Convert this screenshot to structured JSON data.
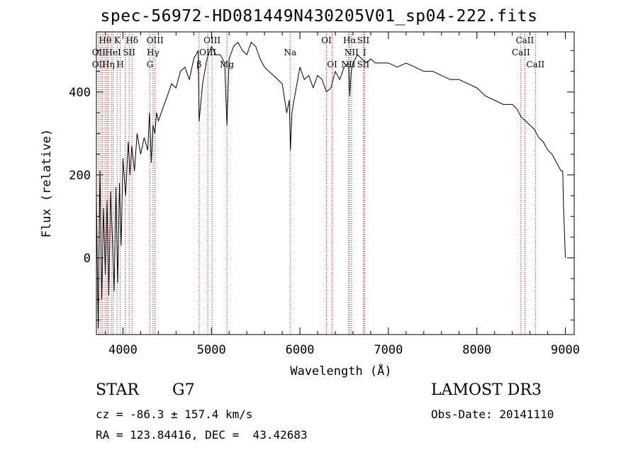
{
  "title": "spec-56972-HD081449N430205V01_sp04-222.fits",
  "info": {
    "object_class": "STAR",
    "subclass": "G7",
    "survey": "LAMOST DR3",
    "cz_line": "cz = -86.3 ± 157.4 km/s",
    "obs_date_line": "Obs-Date: 20141110",
    "radec_line": "RA = 123.84416, DEC =  43.42683"
  },
  "chart_data": {
    "type": "line",
    "title": "spec-56972-HD081449N430205V01_sp04-222.fits",
    "xlabel": "Wavelength (Å)",
    "ylabel": "Flux (relative)",
    "xlim": [
      3700,
      9100
    ],
    "ylim": [
      -185,
      545
    ],
    "xticks": [
      4000,
      5000,
      6000,
      7000,
      8000,
      9000
    ],
    "xtick_labels": [
      "4000",
      "5000",
      "6000",
      "7000",
      "8000",
      "9000"
    ],
    "yticks": [
      0,
      200,
      400
    ],
    "ytick_labels": [
      "0",
      "200",
      "400"
    ],
    "grid": false,
    "series": [
      {
        "name": "flux",
        "x": [
          3700,
          3720,
          3740,
          3760,
          3780,
          3800,
          3820,
          3840,
          3860,
          3880,
          3900,
          3920,
          3940,
          3960,
          3980,
          4000,
          4030,
          4060,
          4080,
          4100,
          4130,
          4160,
          4200,
          4240,
          4280,
          4300,
          4320,
          4340,
          4360,
          4380,
          4400,
          4450,
          4500,
          4550,
          4600,
          4650,
          4700,
          4750,
          4800,
          4850,
          4861,
          4900,
          4950,
          5000,
          5050,
          5100,
          5150,
          5175,
          5200,
          5250,
          5300,
          5350,
          5400,
          5450,
          5500,
          5550,
          5600,
          5650,
          5700,
          5750,
          5800,
          5850,
          5880,
          5893,
          5910,
          5950,
          6000,
          6050,
          6100,
          6150,
          6200,
          6250,
          6300,
          6350,
          6400,
          6450,
          6500,
          6550,
          6563,
          6580,
          6600,
          6650,
          6700,
          6750,
          6800,
          6850,
          6900,
          6950,
          7000,
          7100,
          7200,
          7300,
          7400,
          7500,
          7600,
          7700,
          7800,
          7900,
          8000,
          8100,
          8200,
          8300,
          8400,
          8450,
          8500,
          8550,
          8600,
          8650,
          8700,
          8750,
          8800,
          8850,
          8900,
          8950,
          8970,
          8980,
          8990,
          9000
        ],
        "values": [
          150,
          -170,
          210,
          -100,
          120,
          -40,
          140,
          -90,
          160,
          50,
          -80,
          170,
          -60,
          180,
          30,
          240,
          150,
          280,
          200,
          270,
          210,
          300,
          250,
          290,
          260,
          350,
          230,
          320,
          300,
          350,
          330,
          360,
          390,
          420,
          410,
          450,
          460,
          430,
          480,
          500,
          330,
          420,
          480,
          510,
          490,
          490,
          470,
          320,
          480,
          510,
          520,
          500,
          490,
          520,
          510,
          480,
          460,
          450,
          440,
          430,
          420,
          350,
          380,
          260,
          350,
          400,
          460,
          430,
          440,
          410,
          440,
          430,
          400,
          410,
          450,
          430,
          460,
          470,
          390,
          450,
          470,
          490,
          480,
          470,
          480,
          470,
          470,
          470,
          470,
          460,
          470,
          460,
          450,
          450,
          440,
          430,
          430,
          420,
          410,
          390,
          380,
          370,
          370,
          360,
          340,
          330,
          320,
          310,
          290,
          280,
          260,
          250,
          230,
          210,
          210,
          120,
          60,
          0
        ]
      }
    ],
    "lines": {
      "wavelengths": [
        3727,
        3750,
        3771,
        3798,
        3820,
        3835,
        3869,
        3889,
        3934,
        3969,
        4026,
        4070,
        4102,
        4305,
        4340,
        4363,
        4861,
        4959,
        5007,
        5175,
        5890,
        6300,
        6364,
        6548,
        6563,
        6583,
        6716,
        6731,
        8498,
        8542,
        8662
      ],
      "labels": [
        {
          "text": "Hθ",
          "w": 3798,
          "row": 0
        },
        {
          "text": "K",
          "w": 3934,
          "row": 0
        },
        {
          "text": "Hδ",
          "w": 4102,
          "row": 0
        },
        {
          "text": "OIII",
          "w": 4363,
          "row": 0
        },
        {
          "text": "OIII",
          "w": 5007,
          "row": 0
        },
        {
          "text": "OI",
          "w": 6300,
          "row": 0
        },
        {
          "text": "Hα",
          "w": 6563,
          "row": 0
        },
        {
          "text": "SII",
          "w": 6716,
          "row": 0
        },
        {
          "text": "CaII",
          "w": 8542,
          "row": 0
        },
        {
          "text": "OII",
          "w": 3727,
          "row": 1
        },
        {
          "text": "HeI",
          "w": 3889,
          "row": 1
        },
        {
          "text": "SII",
          "w": 4070,
          "row": 1
        },
        {
          "text": "Hγ",
          "w": 4340,
          "row": 1
        },
        {
          "text": "OIII",
          "w": 4959,
          "row": 1
        },
        {
          "text": "Na",
          "w": 5890,
          "row": 1
        },
        {
          "text": "NII",
          "w": 6583,
          "row": 1
        },
        {
          "text": "I",
          "w": 6731,
          "row": 1
        },
        {
          "text": "CaII",
          "w": 8498,
          "row": 1
        },
        {
          "text": "OII",
          "w": 3727,
          "row": 2
        },
        {
          "text": "Hη",
          "w": 3835,
          "row": 2
        },
        {
          "text": "H",
          "w": 3969,
          "row": 2
        },
        {
          "text": "G",
          "w": 4305,
          "row": 2
        },
        {
          "text": "β",
          "w": 4861,
          "row": 2
        },
        {
          "text": "Mg",
          "w": 5175,
          "row": 2
        },
        {
          "text": "OI",
          "w": 6364,
          "row": 2
        },
        {
          "text": "NII",
          "w": 6548,
          "row": 2
        },
        {
          "text": "SII",
          "w": 6716,
          "row": 2
        },
        {
          "text": "CaII",
          "w": 8662,
          "row": 2
        }
      ]
    }
  }
}
